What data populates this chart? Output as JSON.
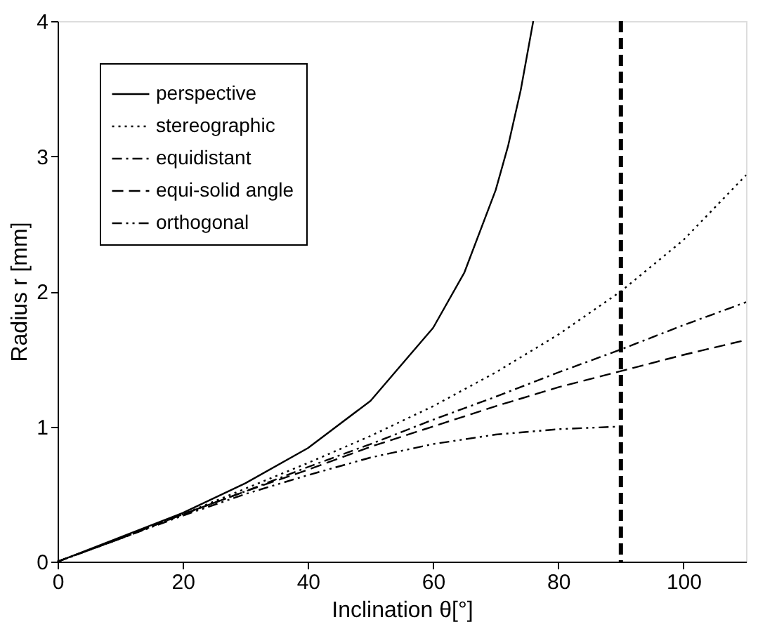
{
  "chart_data": {
    "type": "line",
    "xlabel": "Inclination θ[°]",
    "ylabel": "Radius r [mm]",
    "xlim": [
      0,
      110
    ],
    "ylim": [
      0,
      4
    ],
    "xticks": [
      0,
      20,
      40,
      60,
      80,
      100
    ],
    "yticks": [
      0,
      1,
      2,
      3,
      4
    ],
    "grid": false,
    "legend": "top left",
    "marker": "none",
    "series": [
      {
        "name": "perspective",
        "color": "#000000",
        "line_style": "solid",
        "x": [
          0,
          10,
          20,
          30,
          40,
          50,
          60,
          65,
          70,
          72,
          74,
          76
        ],
        "values": [
          0,
          0.18,
          0.36,
          0.58,
          0.84,
          1.19,
          1.73,
          2.14,
          2.75,
          3.08,
          3.49,
          4.0
        ]
      },
      {
        "name": "stereographic",
        "color": "#000000",
        "line_style": "dotted",
        "x": [
          0,
          10,
          20,
          30,
          40,
          50,
          60,
          70,
          80,
          90,
          100,
          110
        ],
        "values": [
          0,
          0.17,
          0.35,
          0.54,
          0.73,
          0.93,
          1.15,
          1.4,
          1.68,
          2.0,
          2.38,
          2.86
        ]
      },
      {
        "name": "equidistant",
        "color": "#000000",
        "line_style": "dashdot",
        "x": [
          0,
          10,
          20,
          30,
          40,
          50,
          60,
          70,
          80,
          90,
          100,
          110
        ],
        "values": [
          0,
          0.17,
          0.35,
          0.52,
          0.7,
          0.87,
          1.05,
          1.22,
          1.4,
          1.57,
          1.75,
          1.92
        ]
      },
      {
        "name": "equi-solid angle",
        "color": "#000000",
        "line_style": "dashed",
        "x": [
          0,
          10,
          20,
          30,
          40,
          50,
          60,
          70,
          80,
          90,
          100,
          110
        ],
        "values": [
          0,
          0.17,
          0.35,
          0.52,
          0.68,
          0.85,
          1.0,
          1.15,
          1.29,
          1.41,
          1.53,
          1.64
        ]
      },
      {
        "name": "orthogonal",
        "color": "#000000",
        "line_style": "dashdotdot",
        "x": [
          0,
          10,
          20,
          30,
          40,
          50,
          60,
          70,
          80,
          90
        ],
        "values": [
          0,
          0.17,
          0.34,
          0.5,
          0.64,
          0.77,
          0.87,
          0.94,
          0.98,
          1.0
        ]
      }
    ],
    "ref_lines": [
      {
        "axis": "x",
        "value": 90,
        "color": "#000000",
        "line_style": "dashed"
      }
    ]
  }
}
